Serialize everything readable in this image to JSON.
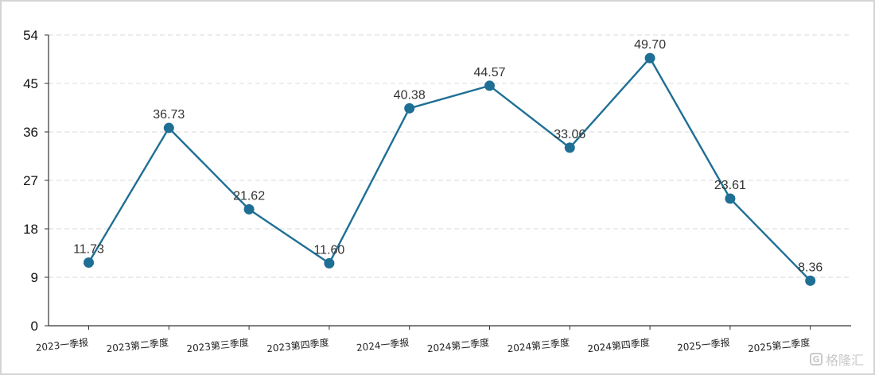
{
  "watermark": {
    "logo_glyph": "G",
    "text": "格隆汇"
  },
  "colors": {
    "line": "#1f6f95",
    "point": "#1f6f95",
    "grid": "#d8d8d8",
    "axis": "#333333"
  },
  "chart_data": {
    "type": "line",
    "title": "",
    "xlabel": "",
    "ylabel": "",
    "categories": [
      "2023一季报",
      "2023第二季度",
      "2023第三季度",
      "2023第四季度",
      "2024一季报",
      "2024第二季度",
      "2024第三季度",
      "2024第四季度",
      "2025一季报",
      "2025第二季度"
    ],
    "series": [
      {
        "values": [
          11.73,
          36.73,
          21.62,
          11.6,
          40.38,
          44.57,
          33.06,
          49.7,
          23.61,
          8.36
        ],
        "labels": [
          "11.73",
          "36.73",
          "21.62",
          "11.60",
          "40.38",
          "44.57",
          "33.06",
          "49.70",
          "23.61",
          "8.36"
        ]
      }
    ],
    "yticks": [
      "0",
      "9",
      "18",
      "27",
      "36",
      "45",
      "54"
    ],
    "ylim": [
      0,
      54
    ],
    "grid": true,
    "grid_style": "dashed horizontal",
    "legend": "none"
  }
}
